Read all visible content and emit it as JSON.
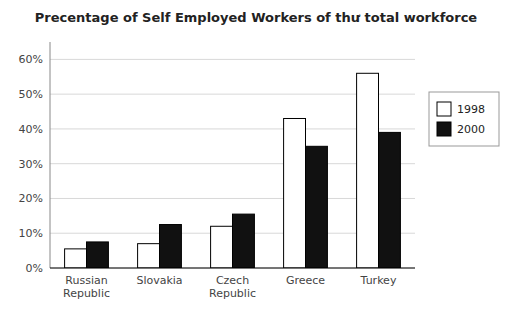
{
  "chart_data": {
    "type": "bar",
    "title": "Precentage of Self Employed Workers of thư total workforce",
    "categories": [
      "Russian\nRepublic",
      "Slovakia",
      "Czech\nRepublic",
      "Greece",
      "Turkey"
    ],
    "series": [
      {
        "name": "1998",
        "color": "#ffffff",
        "values": [
          5.5,
          7,
          12,
          43,
          56
        ]
      },
      {
        "name": "2000",
        "color": "#111111",
        "values": [
          7.5,
          12.5,
          15.5,
          35,
          39
        ]
      }
    ],
    "ylim": [
      0,
      65
    ],
    "yticks": [
      {
        "value": 0,
        "label": "0%"
      },
      {
        "value": 10,
        "label": "10%"
      },
      {
        "value": 20,
        "label": "20%"
      },
      {
        "value": 30,
        "label": "30%"
      },
      {
        "value": 40,
        "label": "40%"
      },
      {
        "value": 50,
        "label": "50%"
      },
      {
        "value": 60,
        "label": "60%"
      }
    ],
    "grid": true,
    "legend": "right"
  }
}
